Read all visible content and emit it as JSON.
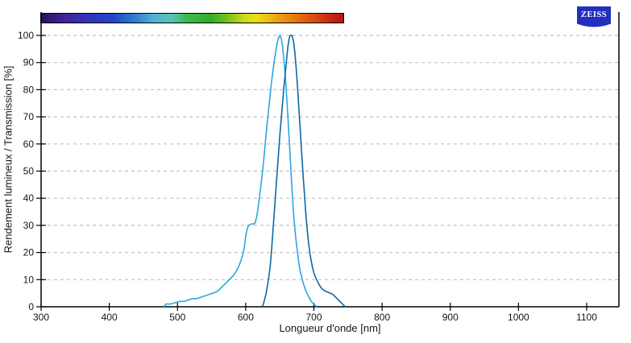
{
  "branding": {
    "logo_text": "ZEISS",
    "logo_bg_color": "#2130c0",
    "logo_text_color": "#ffffff"
  },
  "chart_data": {
    "type": "line",
    "title": "",
    "xlabel": "Longueur d'onde [nm]",
    "ylabel": "Rendement lumineux / Transmission [%]",
    "x_ticks": [
      300,
      400,
      500,
      600,
      700,
      800,
      900,
      1000,
      1100
    ],
    "y_ticks": [
      0,
      10,
      20,
      30,
      40,
      50,
      60,
      70,
      80,
      90,
      100
    ],
    "xlim": [
      300,
      1147
    ],
    "ylim": [
      0,
      108
    ],
    "grid": {
      "horizontal": "dashed",
      "vertical": "none",
      "color": "#c1c1c1"
    },
    "axis_color": "#000000",
    "text_color": "#14141e",
    "legend": "none",
    "series": [
      {
        "name": "light-blue-curve",
        "color": "#2ba7e2",
        "points": [
          [
            480,
            0
          ],
          [
            483,
            1
          ],
          [
            490,
            1
          ],
          [
            497,
            1.5
          ],
          [
            503,
            2
          ],
          [
            510,
            2
          ],
          [
            516,
            2.5
          ],
          [
            522,
            3
          ],
          [
            528,
            3
          ],
          [
            534,
            3.5
          ],
          [
            540,
            4
          ],
          [
            546,
            4.5
          ],
          [
            552,
            5
          ],
          [
            557,
            5.5
          ],
          [
            562,
            6.5
          ],
          [
            566,
            7.5
          ],
          [
            570,
            8.5
          ],
          [
            574,
            9.5
          ],
          [
            578,
            10.5
          ],
          [
            582,
            11.5
          ],
          [
            586,
            13
          ],
          [
            590,
            15
          ],
          [
            593,
            17
          ],
          [
            596,
            19.5
          ],
          [
            598,
            22
          ],
          [
            600,
            26
          ],
          [
            602,
            28.5
          ],
          [
            604,
            30
          ],
          [
            608,
            30.5
          ],
          [
            612,
            30.5
          ],
          [
            614,
            31
          ],
          [
            616,
            33
          ],
          [
            618,
            36
          ],
          [
            620,
            40
          ],
          [
            623,
            46
          ],
          [
            626,
            53
          ],
          [
            629,
            61
          ],
          [
            632,
            69
          ],
          [
            635,
            76
          ],
          [
            638,
            83
          ],
          [
            641,
            89
          ],
          [
            644,
            94
          ],
          [
            646,
            97
          ],
          [
            648,
            99
          ],
          [
            650,
            100
          ],
          [
            652,
            99
          ],
          [
            654,
            96
          ],
          [
            656,
            91
          ],
          [
            658,
            85
          ],
          [
            660,
            78
          ],
          [
            662,
            70
          ],
          [
            664,
            61
          ],
          [
            666,
            52
          ],
          [
            668,
            43
          ],
          [
            670,
            35
          ],
          [
            672,
            29
          ],
          [
            674,
            24
          ],
          [
            676,
            20
          ],
          [
            678,
            16
          ],
          [
            680,
            13
          ],
          [
            682,
            11
          ],
          [
            684,
            9
          ],
          [
            686,
            7.5
          ],
          [
            688,
            6
          ],
          [
            690,
            5
          ],
          [
            692,
            4
          ],
          [
            694,
            3
          ],
          [
            696,
            2
          ],
          [
            698,
            1.5
          ],
          [
            700,
            1
          ],
          [
            702,
            0.5
          ],
          [
            704,
            0
          ]
        ]
      },
      {
        "name": "dark-blue-curve",
        "color": "#0e68a2",
        "points": [
          [
            624,
            0
          ],
          [
            626,
            1
          ],
          [
            628,
            3
          ],
          [
            630,
            5
          ],
          [
            632,
            8
          ],
          [
            634,
            11
          ],
          [
            636,
            15
          ],
          [
            638,
            21
          ],
          [
            640,
            28
          ],
          [
            642,
            35
          ],
          [
            644,
            42
          ],
          [
            646,
            49
          ],
          [
            648,
            56
          ],
          [
            650,
            63
          ],
          [
            652,
            69
          ],
          [
            654,
            75
          ],
          [
            656,
            81
          ],
          [
            658,
            86
          ],
          [
            660,
            91
          ],
          [
            662,
            96
          ],
          [
            664,
            99
          ],
          [
            665,
            100
          ],
          [
            668,
            100
          ],
          [
            670,
            98
          ],
          [
            672,
            94
          ],
          [
            674,
            88
          ],
          [
            676,
            81
          ],
          [
            678,
            73
          ],
          [
            680,
            65
          ],
          [
            682,
            57
          ],
          [
            684,
            49
          ],
          [
            686,
            42
          ],
          [
            688,
            35
          ],
          [
            690,
            29
          ],
          [
            692,
            24
          ],
          [
            694,
            20
          ],
          [
            696,
            17
          ],
          [
            698,
            14.5
          ],
          [
            700,
            12.5
          ],
          [
            702,
            11
          ],
          [
            704,
            10
          ],
          [
            706,
            9
          ],
          [
            708,
            8
          ],
          [
            710,
            7.2
          ],
          [
            712,
            6.6
          ],
          [
            714,
            6.2
          ],
          [
            716,
            5.9
          ],
          [
            718,
            5.6
          ],
          [
            720,
            5.4
          ],
          [
            722,
            5.2
          ],
          [
            724,
            5
          ],
          [
            726,
            4.8
          ],
          [
            728,
            4.5
          ],
          [
            730,
            4
          ],
          [
            732,
            3.5
          ],
          [
            734,
            3
          ],
          [
            736,
            2.5
          ],
          [
            738,
            2
          ],
          [
            740,
            1.5
          ],
          [
            742,
            1
          ],
          [
            744,
            0.5
          ],
          [
            746,
            0
          ]
        ]
      }
    ],
    "spectrum_bar": {
      "range_nm": [
        300,
        745
      ],
      "stops": [
        {
          "pos": 0.0,
          "color": "#2a1060"
        },
        {
          "pos": 0.08,
          "color": "#45229a"
        },
        {
          "pos": 0.15,
          "color": "#3333bb"
        },
        {
          "pos": 0.24,
          "color": "#2046c6"
        },
        {
          "pos": 0.31,
          "color": "#2f7fd0"
        },
        {
          "pos": 0.37,
          "color": "#52aed8"
        },
        {
          "pos": 0.43,
          "color": "#57c5b8"
        },
        {
          "pos": 0.48,
          "color": "#3db954"
        },
        {
          "pos": 0.56,
          "color": "#2fae27"
        },
        {
          "pos": 0.62,
          "color": "#77c31e"
        },
        {
          "pos": 0.67,
          "color": "#c9d916"
        },
        {
          "pos": 0.71,
          "color": "#ecdf12"
        },
        {
          "pos": 0.78,
          "color": "#eda313"
        },
        {
          "pos": 0.85,
          "color": "#e47112"
        },
        {
          "pos": 0.93,
          "color": "#d23a11"
        },
        {
          "pos": 1.0,
          "color": "#b31510"
        }
      ]
    }
  }
}
